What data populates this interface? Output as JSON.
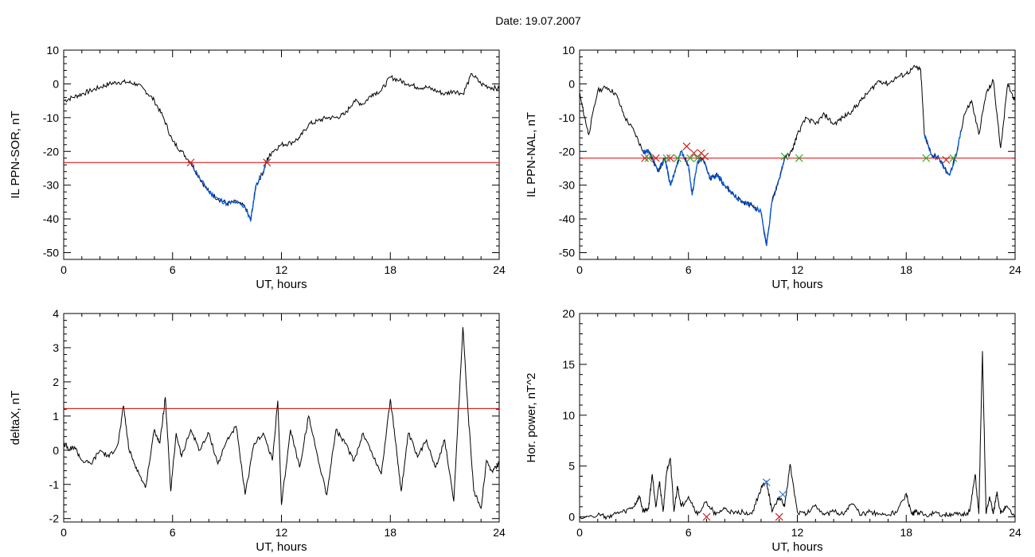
{
  "figure_title": "Date:  19.07.2007",
  "colors": {
    "data": "#000000",
    "event": "#0055dd",
    "threshold": "#dd0000",
    "mark_start": "#cc2222",
    "mark_end": "#22aa22",
    "mark_peak": "#3377dd"
  },
  "chart_data": [
    {
      "id": "sor",
      "type": "line",
      "ylabel": "IL PPN-SOR, nT",
      "xlabel": "UT, hours",
      "xlim": [
        0,
        24
      ],
      "ylim": [
        -52,
        10
      ],
      "xticks": [
        0,
        6,
        12,
        18,
        24
      ],
      "yticks": [
        10,
        0,
        -10,
        -20,
        -30,
        -40,
        -50
      ],
      "threshold": -23.3,
      "x": [
        0,
        0.5,
        1,
        1.5,
        2,
        2.5,
        3,
        3.5,
        4,
        4.5,
        5,
        5.5,
        6,
        6.5,
        7,
        7.5,
        8,
        8.5,
        9,
        9.5,
        10,
        10.3,
        10.6,
        11,
        11.2,
        11.5,
        12,
        12.5,
        13,
        13.5,
        14,
        14.5,
        15,
        15.5,
        16,
        16.5,
        17,
        17.5,
        18,
        18.5,
        19,
        19.5,
        20,
        20.5,
        21,
        21.5,
        22,
        22.5,
        23,
        23.5,
        24
      ],
      "values": [
        -5,
        -4,
        -3,
        -2,
        -1,
        0,
        0.5,
        0.5,
        0,
        -2,
        -5,
        -10,
        -17,
        -20,
        -23.3,
        -28,
        -32,
        -34,
        -35.5,
        -35,
        -36.5,
        -40.5,
        -30,
        -26,
        -22.5,
        -20,
        -18,
        -17.5,
        -16,
        -12,
        -11,
        -10,
        -10,
        -9,
        -5,
        -6,
        -3,
        -2,
        2,
        1,
        0,
        -1,
        -1,
        -2,
        -3,
        -2,
        -3,
        3,
        0,
        -1,
        -1.5
      ],
      "event_x_range": [
        7,
        11.2
      ],
      "markers": [
        {
          "x": 7.0,
          "y": -23.3,
          "kind": "start"
        },
        {
          "x": 11.2,
          "y": -23.3,
          "kind": "end"
        },
        {
          "x": 11.2,
          "y": -23.3,
          "kind": "start"
        }
      ]
    },
    {
      "id": "nal",
      "type": "line",
      "ylabel": "IL PPN-NAL, nT",
      "xlabel": "UT, hours",
      "xlim": [
        0,
        24
      ],
      "ylim": [
        -52,
        10
      ],
      "xticks": [
        0,
        6,
        12,
        18,
        24
      ],
      "yticks": [
        10,
        0,
        -10,
        -20,
        -30,
        -40,
        -50
      ],
      "threshold": -22,
      "x": [
        0,
        0.2,
        0.5,
        1,
        1.5,
        2,
        2.5,
        3,
        3.5,
        3.8,
        4,
        4.3,
        4.7,
        5,
        5.3,
        5.6,
        6,
        6.2,
        6.5,
        6.8,
        7.2,
        7.6,
        8,
        8.5,
        9,
        9.5,
        10,
        10.3,
        10.6,
        11,
        11.3,
        11.7,
        12,
        12.5,
        13,
        13.5,
        14,
        14.5,
        15,
        15.5,
        16,
        16.5,
        17,
        17.5,
        18,
        18.5,
        18.8,
        19,
        19.4,
        19.8,
        20.1,
        20.4,
        20.8,
        21.2,
        21.6,
        22,
        22.4,
        22.8,
        23.2,
        23.6,
        24
      ],
      "values": [
        -3,
        -8,
        -15,
        -2,
        -1,
        -3,
        -10,
        -14,
        -20,
        -20,
        -22,
        -26,
        -22,
        -30,
        -25,
        -20,
        -24,
        -33,
        -23,
        -22,
        -28,
        -27,
        -30,
        -33,
        -35,
        -36,
        -38,
        -48,
        -35,
        -28,
        -22,
        -20,
        -15,
        -10,
        -12,
        -9,
        -12,
        -10,
        -8,
        -5,
        -2,
        1,
        0,
        2,
        3,
        5,
        4,
        -15,
        -21,
        -22,
        -25,
        -27,
        -20,
        -9,
        -5,
        -15,
        -3,
        1,
        -19,
        0,
        -5
      ],
      "event_x_range": [
        3.5,
        11.3
      ],
      "event2_x_range": [
        19.0,
        21.0
      ],
      "markers": [
        {
          "x": 3.6,
          "y": -22,
          "kind": "start"
        },
        {
          "x": 3.8,
          "y": -22,
          "kind": "end"
        },
        {
          "x": 4.2,
          "y": -22,
          "kind": "start"
        },
        {
          "x": 4.8,
          "y": -22,
          "kind": "end"
        },
        {
          "x": 5.0,
          "y": -22,
          "kind": "start"
        },
        {
          "x": 5.4,
          "y": -22,
          "kind": "end"
        },
        {
          "x": 5.9,
          "y": -18.5,
          "kind": "start"
        },
        {
          "x": 6.1,
          "y": -22,
          "kind": "end"
        },
        {
          "x": 6.3,
          "y": -20.5,
          "kind": "start"
        },
        {
          "x": 6.5,
          "y": -22,
          "kind": "end"
        },
        {
          "x": 6.7,
          "y": -20.5,
          "kind": "start"
        },
        {
          "x": 6.9,
          "y": -21.5,
          "kind": "start"
        },
        {
          "x": 11.3,
          "y": -21.5,
          "kind": "end"
        },
        {
          "x": 12.1,
          "y": -22,
          "kind": "end"
        },
        {
          "x": 19.1,
          "y": -22,
          "kind": "end"
        },
        {
          "x": 20.2,
          "y": -22.5,
          "kind": "start"
        },
        {
          "x": 20.6,
          "y": -22,
          "kind": "end"
        }
      ]
    },
    {
      "id": "deltax",
      "type": "line",
      "ylabel": "deltaX, nT",
      "xlabel": "UT, hours",
      "xlim": [
        0,
        24
      ],
      "ylim": [
        -2.1,
        4
      ],
      "xticks": [
        0,
        6,
        12,
        18,
        24
      ],
      "yticks": [
        4,
        3,
        2,
        1,
        0,
        -1,
        -2
      ],
      "threshold": 1.22,
      "x": [
        0,
        0.3,
        0.6,
        1,
        1.5,
        2,
        2.5,
        3,
        3.3,
        3.6,
        4,
        4.5,
        5,
        5.3,
        5.6,
        5.9,
        6.2,
        6.5,
        7,
        7.5,
        8,
        8.5,
        9,
        9.5,
        10,
        10.5,
        11,
        11.5,
        11.8,
        12,
        12.5,
        13,
        13.5,
        14,
        14.5,
        15,
        15.5,
        16,
        16.5,
        17,
        17.5,
        18,
        18.3,
        18.6,
        19,
        19.5,
        20,
        20.5,
        21,
        21.5,
        22,
        22.3,
        22.6,
        23,
        23.3,
        23.6,
        24
      ],
      "values": [
        0.2,
        0,
        0.1,
        -0.3,
        -0.4,
        0,
        -0.2,
        0.2,
        1.3,
        0,
        -0.5,
        -1.1,
        0.6,
        0.2,
        1.55,
        -1.2,
        0.5,
        -0.2,
        0.6,
        0,
        0.5,
        -0.4,
        0.3,
        0.7,
        -1.3,
        0.2,
        0.5,
        -0.3,
        1.45,
        -1.6,
        0.6,
        -0.5,
        1.0,
        -0.2,
        -1.3,
        0.6,
        0.2,
        -0.3,
        0.5,
        -0.1,
        -0.7,
        1.5,
        0.2,
        -1.2,
        0.5,
        -0.2,
        0.3,
        -0.5,
        0.3,
        -1.5,
        3.6,
        1.0,
        -1.2,
        -1.7,
        -0.3,
        -0.6,
        -0.4
      ]
    },
    {
      "id": "power",
      "type": "line",
      "ylabel": "Hor. power, nT^2",
      "xlabel": "UT, hours",
      "xlim": [
        0,
        24
      ],
      "ylim": [
        -0.5,
        20
      ],
      "xticks": [
        0,
        6,
        12,
        18,
        24
      ],
      "yticks": [
        20,
        15,
        10,
        5,
        0
      ],
      "x": [
        0,
        1,
        1.5,
        2,
        2.5,
        3,
        3.3,
        3.5,
        3.8,
        4,
        4.2,
        4.4,
        4.6,
        4.8,
        5,
        5.2,
        5.4,
        5.6,
        6,
        6.5,
        7,
        7.5,
        8,
        8.5,
        9,
        9.5,
        10,
        10.3,
        10.6,
        11,
        11.3,
        11.6,
        12,
        12.5,
        13,
        13.5,
        14,
        14.5,
        15,
        15.5,
        16,
        16.5,
        17,
        17.5,
        18,
        18.3,
        18.6,
        19,
        19.5,
        20,
        20.5,
        21,
        21.5,
        21.8,
        22,
        22.2,
        22.4,
        22.6,
        22.8,
        23,
        23.2,
        23.5,
        24
      ],
      "values": [
        0,
        0.2,
        0,
        0.3,
        0.5,
        1,
        2,
        0.5,
        0.8,
        4.2,
        1,
        3.5,
        0.5,
        4.5,
        5.8,
        0.5,
        3,
        1,
        2,
        0.2,
        1.5,
        0.2,
        0.8,
        0.3,
        0.5,
        0.3,
        2.8,
        3.5,
        0.5,
        2,
        1,
        5.2,
        0.5,
        0.3,
        1.2,
        0.2,
        0.5,
        0.3,
        1.3,
        0.2,
        0.5,
        0.3,
        0.2,
        0.5,
        2.3,
        0.3,
        0.5,
        0.2,
        0.3,
        0.2,
        0.3,
        0.2,
        0.5,
        4.2,
        0.3,
        16.3,
        0.3,
        2,
        0.3,
        2.5,
        0.3,
        1,
        0
      ],
      "markers": [
        {
          "x": 10.3,
          "y": 3.4,
          "kind": "peak"
        },
        {
          "x": 11.2,
          "y": 2.2,
          "kind": "peak"
        },
        {
          "x": 7.0,
          "y": 0,
          "kind": "start"
        },
        {
          "x": 11.0,
          "y": 0,
          "kind": "start"
        }
      ]
    }
  ]
}
